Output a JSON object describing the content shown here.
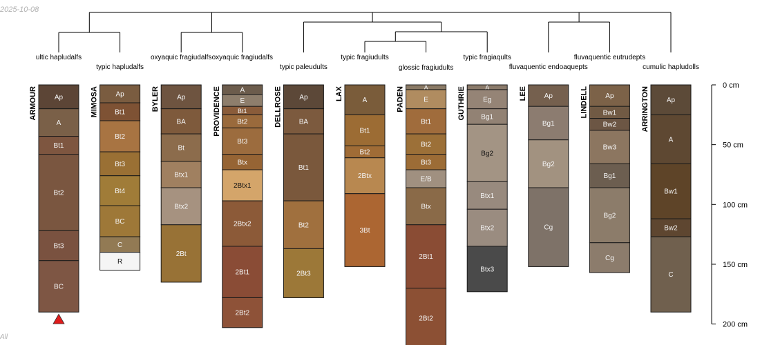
{
  "corner_date": "2025-10-08",
  "corner_mark": "All",
  "colors": {
    "dendrogram": "#000000",
    "horizon_border": "#1a1a1a",
    "bottom_marker": "#e01b1b"
  },
  "chart_data": {
    "type": "soil-profile-sketch",
    "title": "",
    "depth_axis": {
      "unit": "cm",
      "range": [
        0,
        200
      ],
      "ticks": [
        0,
        50,
        100,
        150,
        200
      ],
      "tick_labels": [
        "0 cm",
        "50 cm",
        "100 cm",
        "150 cm",
        "200 cm"
      ]
    },
    "profiles": [
      {
        "name": "ARMOUR",
        "subgroup": "ultic hapludalfs",
        "bottom_marker": true,
        "horizons": [
          {
            "name": "Ap",
            "top": 0,
            "bottom": 20,
            "color": "#5c4536"
          },
          {
            "name": "A",
            "top": 20,
            "bottom": 43,
            "color": "#7a6048"
          },
          {
            "name": "Bt1",
            "top": 43,
            "bottom": 58,
            "color": "#7e5640"
          },
          {
            "name": "Bt2",
            "top": 58,
            "bottom": 122,
            "color": "#7a5640"
          },
          {
            "name": "Bt3",
            "top": 122,
            "bottom": 147,
            "color": "#7a5240"
          },
          {
            "name": "BC",
            "top": 147,
            "bottom": 190,
            "color": "#7e5644"
          }
        ]
      },
      {
        "name": "MIMOSA",
        "subgroup": "typic hapludalfs",
        "bottom_marker": false,
        "horizons": [
          {
            "name": "Ap",
            "top": 0,
            "bottom": 15,
            "color": "#7a5c40"
          },
          {
            "name": "Bt1",
            "top": 15,
            "bottom": 30,
            "color": "#7e5234"
          },
          {
            "name": "Bt2",
            "top": 30,
            "bottom": 56,
            "color": "#a87442"
          },
          {
            "name": "Bt3",
            "top": 56,
            "bottom": 76,
            "color": "#9a7034"
          },
          {
            "name": "Bt4",
            "top": 76,
            "bottom": 101,
            "color": "#a07c38"
          },
          {
            "name": "BC",
            "top": 101,
            "bottom": 127,
            "color": "#9e7838"
          },
          {
            "name": "C",
            "top": 127,
            "bottom": 140,
            "color": "#927a54"
          },
          {
            "name": "R",
            "top": 140,
            "bottom": 155,
            "color": "#f5f5f5"
          }
        ]
      },
      {
        "name": "BYLER",
        "subgroup": "oxyaquic fragiudalfs",
        "bottom_marker": false,
        "horizons": [
          {
            "name": "Ap",
            "top": 0,
            "bottom": 20,
            "color": "#6e5440"
          },
          {
            "name": "BA",
            "top": 20,
            "bottom": 41,
            "color": "#7e5a3c"
          },
          {
            "name": "Bt",
            "top": 41,
            "bottom": 64,
            "color": "#8c6c4c"
          },
          {
            "name": "Btx1",
            "top": 64,
            "bottom": 86,
            "color": "#a08060"
          },
          {
            "name": "Btx2",
            "top": 86,
            "bottom": 117,
            "color": "#a69280"
          },
          {
            "name": "2Bt",
            "top": 117,
            "bottom": 165,
            "color": "#987236"
          }
        ]
      },
      {
        "name": "PROVIDENCE",
        "subgroup": "oxyaquic fragiudalfs",
        "bottom_marker": false,
        "horizons": [
          {
            "name": "A",
            "top": 0,
            "bottom": 8,
            "color": "#6c5c4c"
          },
          {
            "name": "E",
            "top": 8,
            "bottom": 18,
            "color": "#8e7e6c"
          },
          {
            "name": "Bt1",
            "top": 18,
            "bottom": 25,
            "color": "#8a5c3a"
          },
          {
            "name": "Bt2",
            "top": 25,
            "bottom": 36,
            "color": "#9a6a3c"
          },
          {
            "name": "Bt3",
            "top": 36,
            "bottom": 58,
            "color": "#9c6c3e"
          },
          {
            "name": "Btx",
            "top": 58,
            "bottom": 71,
            "color": "#966434"
          },
          {
            "name": "2Btx1",
            "top": 71,
            "bottom": 97,
            "color": "#d4a56a"
          },
          {
            "name": "2Btx2",
            "top": 97,
            "bottom": 135,
            "color": "#8c5a38"
          },
          {
            "name": "2Bt1",
            "top": 135,
            "bottom": 178,
            "color": "#8a4c36"
          },
          {
            "name": "2Bt2",
            "top": 178,
            "bottom": 203,
            "color": "#8e5238"
          }
        ]
      },
      {
        "name": "DELLROSE",
        "subgroup": "typic paleudults",
        "bottom_marker": false,
        "horizons": [
          {
            "name": "Ap",
            "top": 0,
            "bottom": 20,
            "color": "#5c4838"
          },
          {
            "name": "BA",
            "top": 20,
            "bottom": 41,
            "color": "#7c5a3e"
          },
          {
            "name": "Bt1",
            "top": 41,
            "bottom": 97,
            "color": "#7a583c"
          },
          {
            "name": "Bt2",
            "top": 97,
            "bottom": 137,
            "color": "#a0703e"
          },
          {
            "name": "2Bt3",
            "top": 137,
            "bottom": 178,
            "color": "#9c7838"
          }
        ]
      },
      {
        "name": "LAX",
        "subgroup": "typic fragiudults",
        "bottom_marker": false,
        "horizons": [
          {
            "name": "A",
            "top": 0,
            "bottom": 25,
            "color": "#7a5c3a"
          },
          {
            "name": "Bt1",
            "top": 25,
            "bottom": 51,
            "color": "#9c6c34"
          },
          {
            "name": "Bt2",
            "top": 51,
            "bottom": 61,
            "color": "#a06c36"
          },
          {
            "name": "2Btx",
            "top": 61,
            "bottom": 91,
            "color": "#b88850"
          },
          {
            "name": "3Bt",
            "top": 91,
            "bottom": 152,
            "color": "#ac6632"
          }
        ]
      },
      {
        "name": "PADEN",
        "subgroup": "glossic fragiudults",
        "bottom_marker": false,
        "horizons": [
          {
            "name": "A",
            "top": 0,
            "bottom": 4,
            "color": "#8a7a66"
          },
          {
            "name": "E",
            "top": 4,
            "bottom": 20,
            "color": "#b08c60"
          },
          {
            "name": "Bt1",
            "top": 20,
            "bottom": 41,
            "color": "#a06c3c"
          },
          {
            "name": "Bt2",
            "top": 41,
            "bottom": 58,
            "color": "#9c7038"
          },
          {
            "name": "Bt3",
            "top": 58,
            "bottom": 71,
            "color": "#9c6c36"
          },
          {
            "name": "E/B",
            "top": 71,
            "bottom": 86,
            "color": "#a09080"
          },
          {
            "name": "Btx",
            "top": 86,
            "bottom": 117,
            "color": "#8a6a48"
          },
          {
            "name": "2Bt1",
            "top": 117,
            "bottom": 170,
            "color": "#8a4c34"
          },
          {
            "name": "2Bt2",
            "top": 170,
            "bottom": 220,
            "color": "#8c5034"
          }
        ]
      },
      {
        "name": "GUTHRIE",
        "subgroup": "typic fragiaqults",
        "bottom_marker": false,
        "horizons": [
          {
            "name": "A",
            "top": 0,
            "bottom": 4,
            "color": "#8a7a6a"
          },
          {
            "name": "Eg",
            "top": 4,
            "bottom": 20,
            "color": "#958476"
          },
          {
            "name": "Bg1",
            "top": 20,
            "bottom": 33,
            "color": "#928274"
          },
          {
            "name": "Bg2",
            "top": 33,
            "bottom": 81,
            "color": "#a39484"
          },
          {
            "name": "Btx1",
            "top": 81,
            "bottom": 104,
            "color": "#988a7e"
          },
          {
            "name": "Btx2",
            "top": 104,
            "bottom": 135,
            "color": "#9a8c80"
          },
          {
            "name": "Btx3",
            "top": 135,
            "bottom": 173,
            "color": "#4a4a4a"
          }
        ]
      },
      {
        "name": "LEE",
        "subgroup": "fluvaquentic endoaquepts",
        "bottom_marker": false,
        "horizons": [
          {
            "name": "Ap",
            "top": 0,
            "bottom": 18,
            "color": "#75604e"
          },
          {
            "name": "Bg1",
            "top": 18,
            "bottom": 46,
            "color": "#8c7c70"
          },
          {
            "name": "Bg2",
            "top": 46,
            "bottom": 86,
            "color": "#a29280"
          },
          {
            "name": "Cg",
            "top": 86,
            "bottom": 152,
            "color": "#7e7268"
          }
        ]
      },
      {
        "name": "LINDELL",
        "subgroup": "fluvaquentic eutrudepts",
        "bottom_marker": false,
        "horizons": [
          {
            "name": "Ap",
            "top": 0,
            "bottom": 18,
            "color": "#7c6248"
          },
          {
            "name": "Bw1",
            "top": 18,
            "bottom": 28,
            "color": "#715a44"
          },
          {
            "name": "Bw2",
            "top": 28,
            "bottom": 38,
            "color": "#6c5644"
          },
          {
            "name": "Bw3",
            "top": 38,
            "bottom": 66,
            "color": "#8c7660"
          },
          {
            "name": "Bg1",
            "top": 66,
            "bottom": 86,
            "color": "#6c5e50"
          },
          {
            "name": "Bg2",
            "top": 86,
            "bottom": 132,
            "color": "#8c7c6a"
          },
          {
            "name": "Cg",
            "top": 132,
            "bottom": 157,
            "color": "#8c7c6c"
          }
        ]
      },
      {
        "name": "ARRINGTON",
        "subgroup": "cumulic hapludolls",
        "bottom_marker": false,
        "horizons": [
          {
            "name": "Ap",
            "top": 0,
            "bottom": 25,
            "color": "#5c4a38"
          },
          {
            "name": "A",
            "top": 25,
            "bottom": 66,
            "color": "#5e4832"
          },
          {
            "name": "Bw1",
            "top": 66,
            "bottom": 112,
            "color": "#5e4428"
          },
          {
            "name": "Bw2",
            "top": 112,
            "bottom": 127,
            "color": "#5e4630"
          },
          {
            "name": "C",
            "top": 127,
            "bottom": 190,
            "color": "#70604e"
          }
        ]
      }
    ],
    "dendrogram_groups": [
      [
        "ARMOUR",
        "MIMOSA",
        "BYLER",
        "PROVIDENCE"
      ],
      [
        [
          "DELLROSE"
        ],
        [
          [
            "LAX",
            "PADEN"
          ],
          "GUTHRIE"
        ]
      ],
      [
        [
          "LEE",
          "LINDELL"
        ],
        "ARRINGTON"
      ]
    ]
  }
}
